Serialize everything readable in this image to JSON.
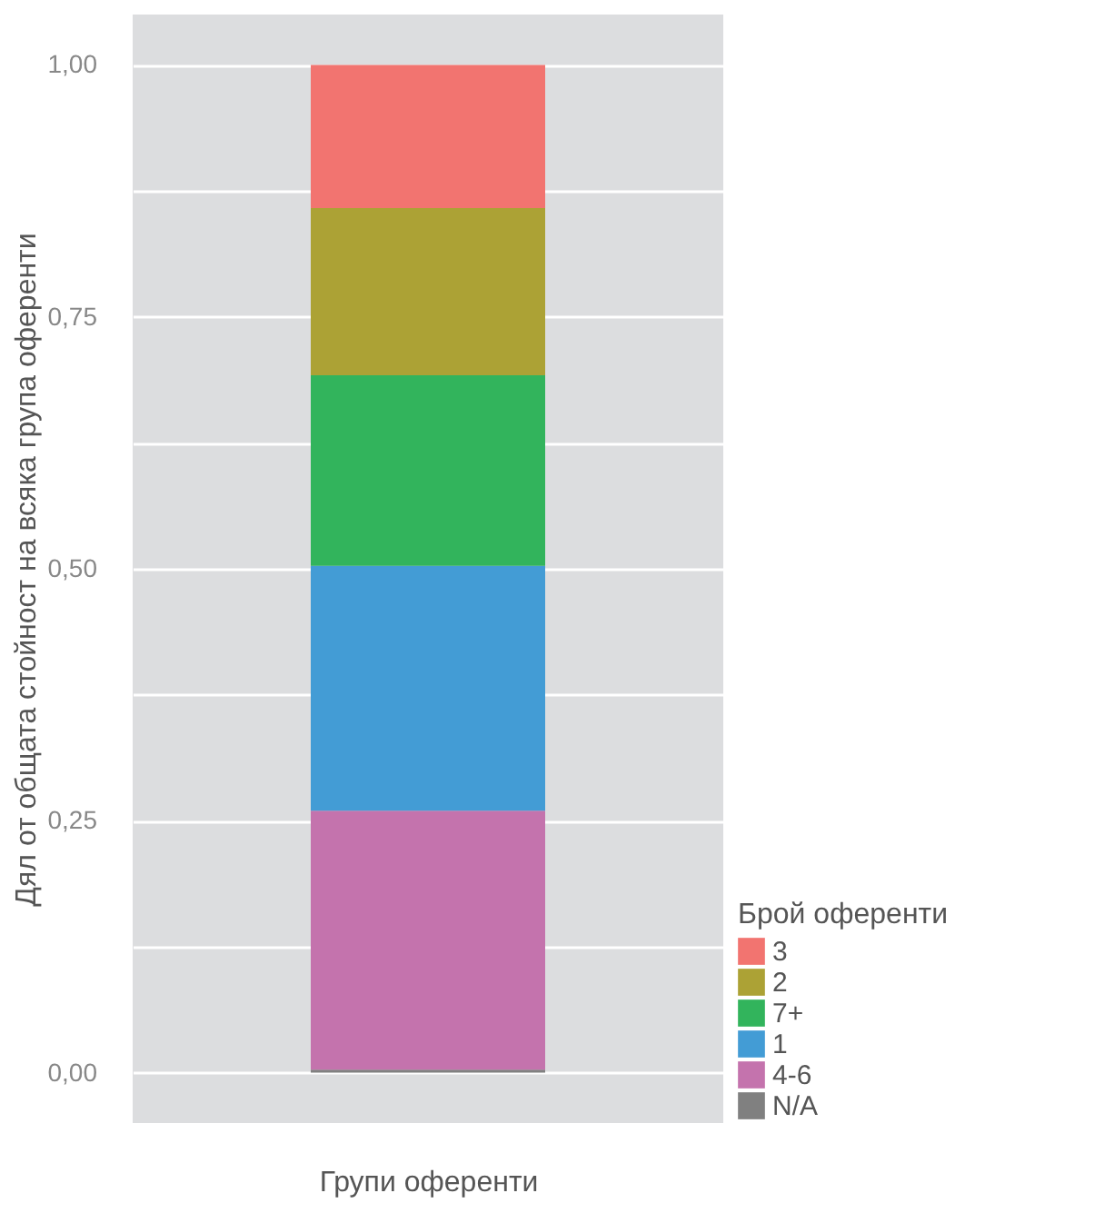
{
  "chart_data": {
    "type": "bar",
    "stacked": true,
    "categories": [
      null
    ],
    "xlabel": "Групи оференти",
    "ylabel": "Дял от общата стойност на всяка група оференти",
    "legend_title": "Брой оференти",
    "series": [
      {
        "name": "N/A",
        "color": "#808080",
        "values": [
          0.003
        ]
      },
      {
        "name": "4-6",
        "color": "#c473ad",
        "values": [
          0.257
        ]
      },
      {
        "name": "1",
        "color": "#439cd5",
        "values": [
          0.243
        ]
      },
      {
        "name": "7+",
        "color": "#32b45c",
        "values": [
          0.189
        ]
      },
      {
        "name": "2",
        "color": "#aca235",
        "values": [
          0.166
        ]
      },
      {
        "name": "3",
        "color": "#f27470",
        "values": [
          0.142
        ]
      }
    ],
    "ylim": [
      -0.05,
      1.05
    ],
    "yticks": [
      {
        "value": 0,
        "label": "0,00"
      },
      {
        "value": 0.125,
        "label": null
      },
      {
        "value": 0.25,
        "label": "0,25"
      },
      {
        "value": 0.375,
        "label": null
      },
      {
        "value": 0.5,
        "label": "0,50"
      },
      {
        "value": 0.625,
        "label": null
      },
      {
        "value": 0.75,
        "label": "0,75"
      },
      {
        "value": 0.875,
        "label": null
      },
      {
        "value": 1,
        "label": "1,00"
      }
    ],
    "grid": "y",
    "legend": "bottom right"
  }
}
